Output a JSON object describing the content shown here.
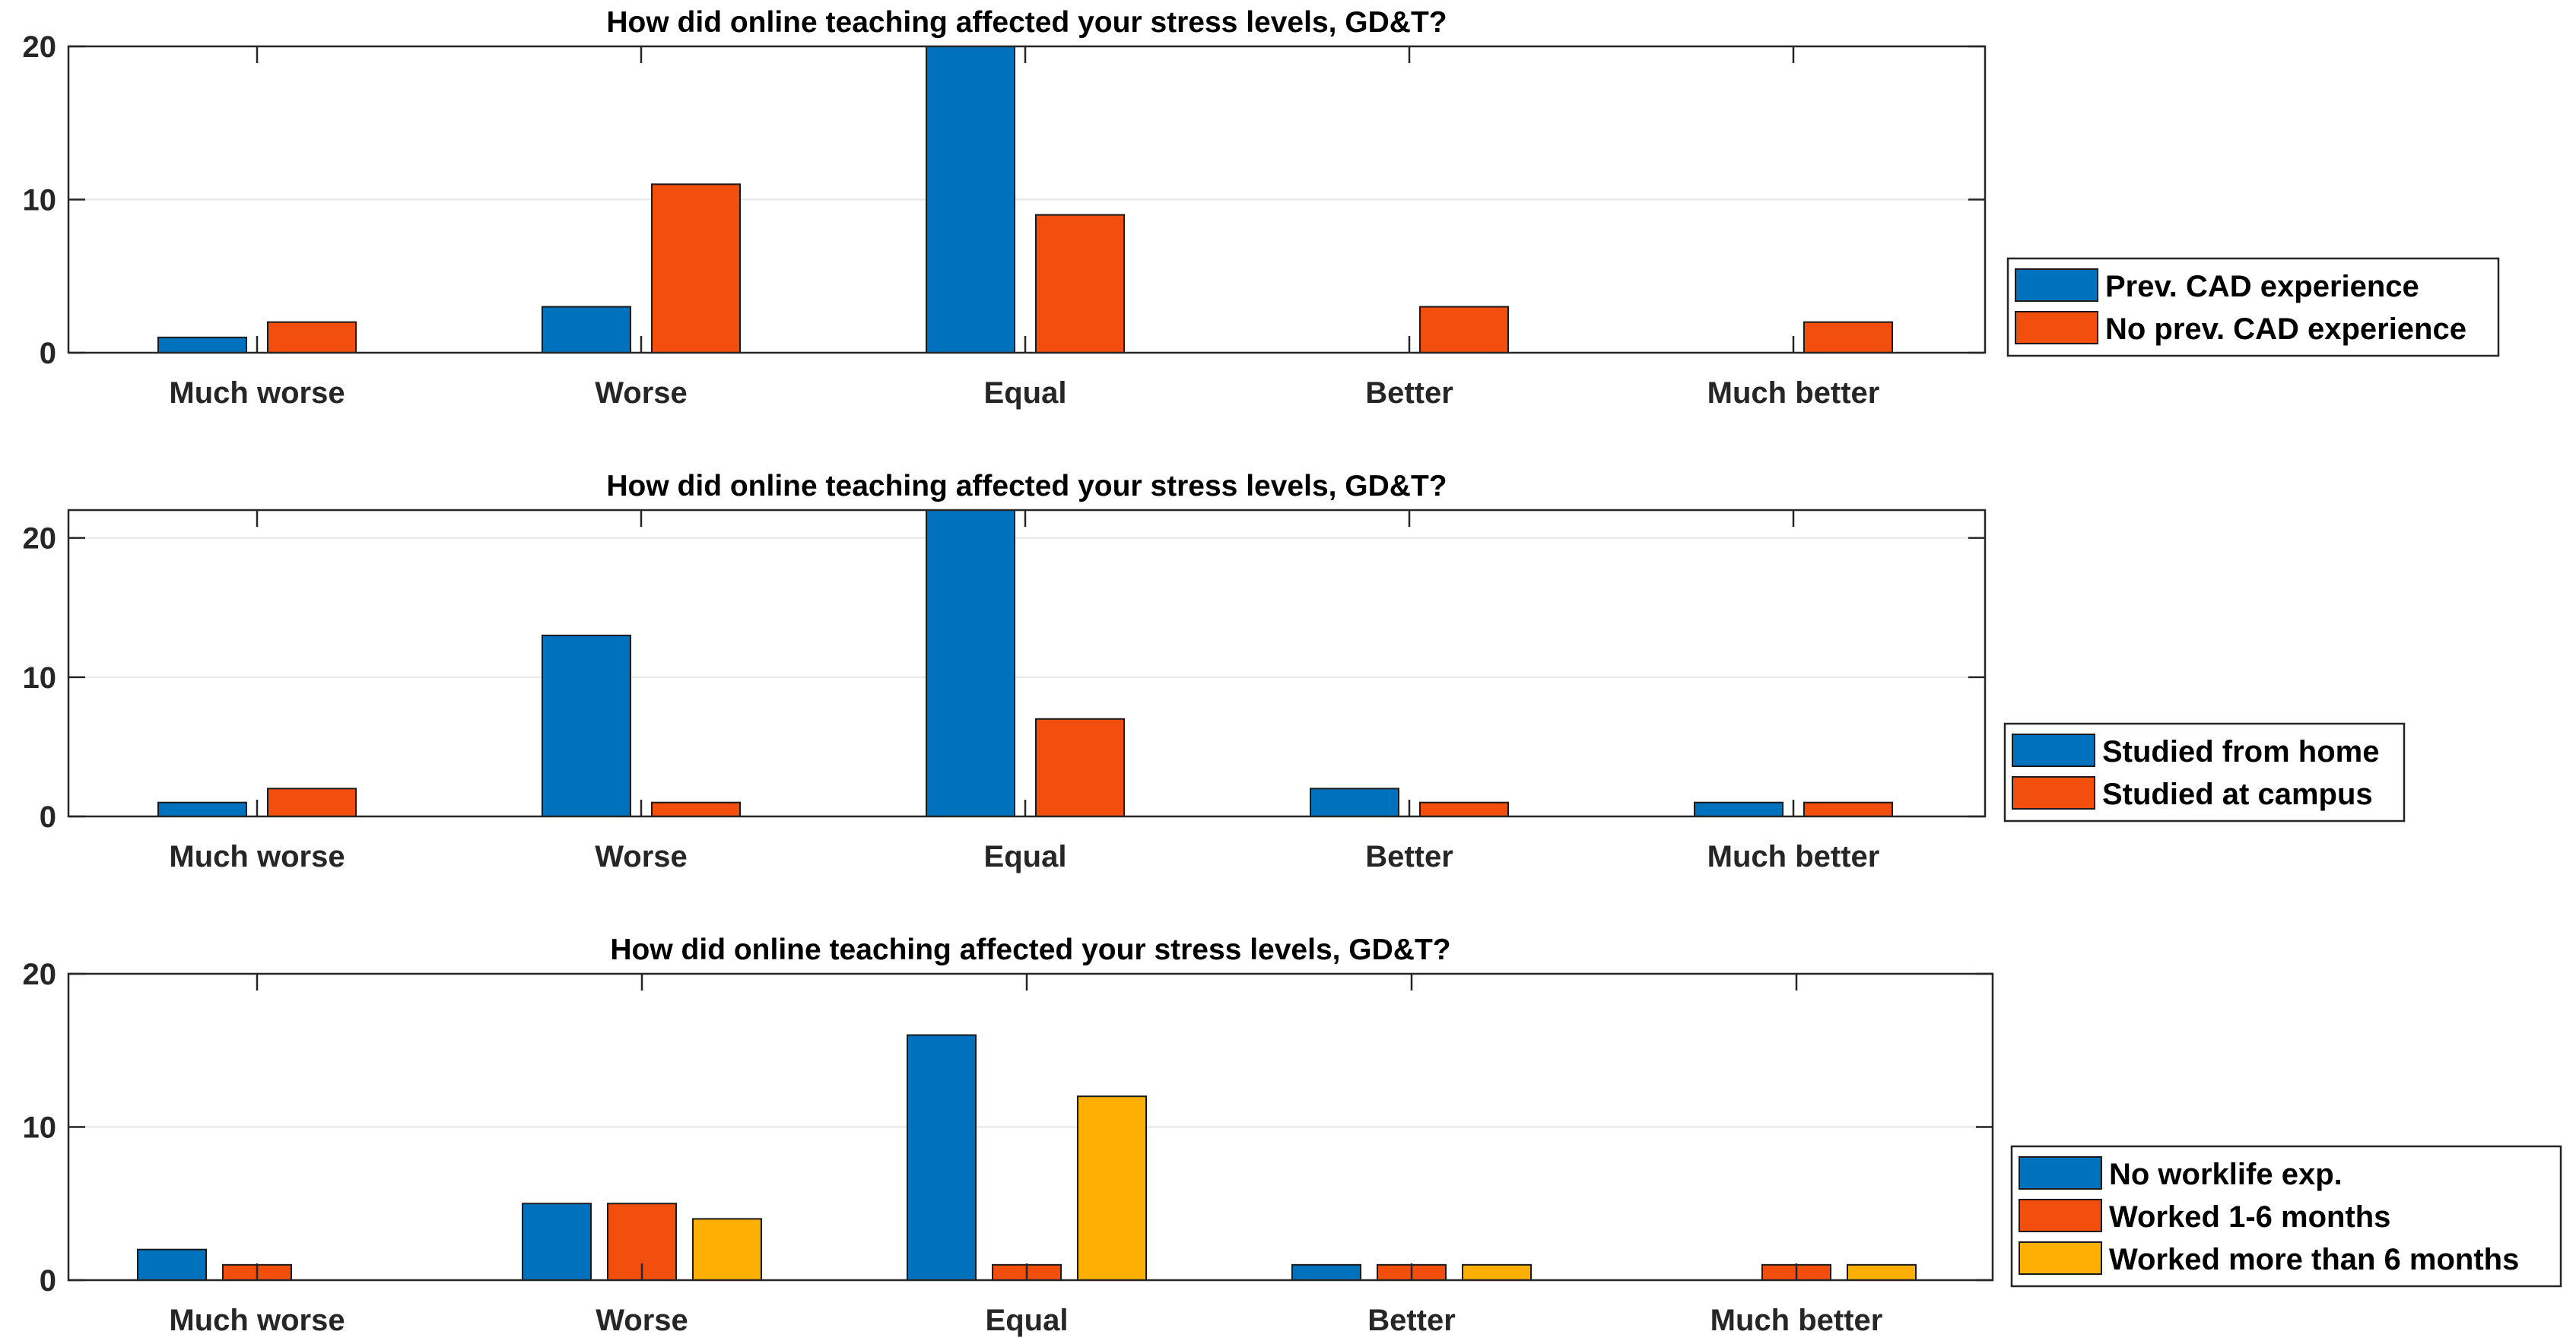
{
  "colors": {
    "series1": "#0072BD",
    "series2": "#F24F0F",
    "series3": "#FDB003",
    "axis": "#262626",
    "grid": "#e6e6e6"
  },
  "chart_data": [
    {
      "type": "bar",
      "title": "How did online teaching affected your stress levels, GD&T?",
      "categories": [
        "Much worse",
        "Worse",
        "Equal",
        "Better",
        "Much better"
      ],
      "ylim": [
        0,
        20
      ],
      "yticks": [
        0,
        10,
        20
      ],
      "grid": true,
      "legend_position": "right",
      "series": [
        {
          "name": "Prev. CAD experience",
          "values": [
            1,
            3,
            20,
            0,
            0
          ]
        },
        {
          "name": "No prev. CAD experience",
          "values": [
            2,
            11,
            9,
            3,
            2
          ]
        }
      ],
      "xlabel": "",
      "ylabel": ""
    },
    {
      "type": "bar",
      "title": "How did online teaching affected your stress levels, GD&T?",
      "categories": [
        "Much worse",
        "Worse",
        "Equal",
        "Better",
        "Much better"
      ],
      "ylim": [
        0,
        22
      ],
      "yticks": [
        0,
        10,
        20
      ],
      "grid": true,
      "legend_position": "right",
      "series": [
        {
          "name": "Studied from home",
          "values": [
            1,
            13,
            22,
            2,
            1
          ]
        },
        {
          "name": "Studied at campus",
          "values": [
            2,
            1,
            7,
            1,
            1
          ]
        }
      ],
      "xlabel": "",
      "ylabel": ""
    },
    {
      "type": "bar",
      "title": "How did online teaching affected your stress levels, GD&T?",
      "categories": [
        "Much worse",
        "Worse",
        "Equal",
        "Better",
        "Much better"
      ],
      "ylim": [
        0,
        20
      ],
      "yticks": [
        0,
        10,
        20
      ],
      "grid": true,
      "legend_position": "right",
      "series": [
        {
          "name": "No worklife exp.",
          "values": [
            2,
            5,
            16,
            1,
            0
          ]
        },
        {
          "name": "Worked 1-6 months",
          "values": [
            1,
            5,
            1,
            1,
            1
          ]
        },
        {
          "name": "Worked more than 6 months",
          "values": [
            0,
            4,
            12,
            1,
            1
          ]
        }
      ],
      "xlabel": "",
      "ylabel": ""
    }
  ]
}
